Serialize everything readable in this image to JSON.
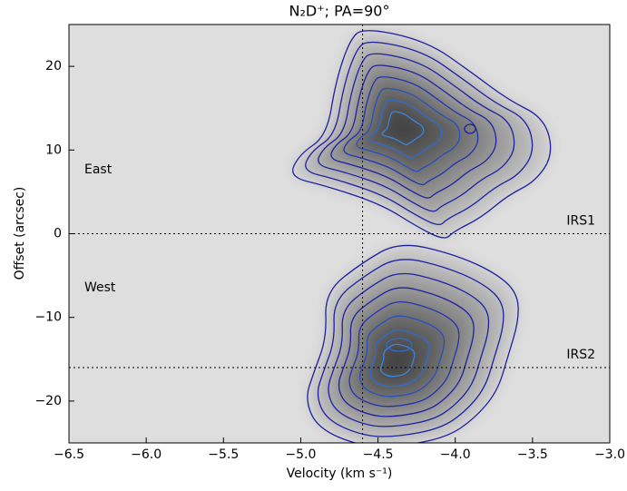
{
  "chart_data": {
    "type": "pv-diagram",
    "title": "N₂D⁺; PA=90°",
    "xlabel": "Velocity (km s⁻¹)",
    "ylabel": "Offset (arcsec)",
    "xlim": [
      -6.5,
      -3.0
    ],
    "xticks": [
      {
        "value": -6.5,
        "label": "−6.5"
      },
      {
        "value": -6.0,
        "label": "−6.0"
      },
      {
        "value": -5.5,
        "label": "−5.5"
      },
      {
        "value": -5.0,
        "label": "−5.0"
      },
      {
        "value": -4.5,
        "label": "−4.5"
      },
      {
        "value": -4.0,
        "label": "−4.0"
      },
      {
        "value": -3.5,
        "label": "−3.5"
      },
      {
        "value": -3.0,
        "label": "−3.0"
      }
    ],
    "ylim": [
      -25,
      25
    ],
    "yticks": [
      {
        "value": -20,
        "label": "−20"
      },
      {
        "value": -10,
        "label": "−10"
      },
      0,
      10,
      20
    ],
    "vline": -4.6,
    "hlines": [
      {
        "y": 0,
        "label": "IRS1"
      },
      {
        "y": -16,
        "label": "IRS2"
      }
    ],
    "annotations": [
      "East",
      "West"
    ],
    "contour_color": "#1f1fa0"
  }
}
